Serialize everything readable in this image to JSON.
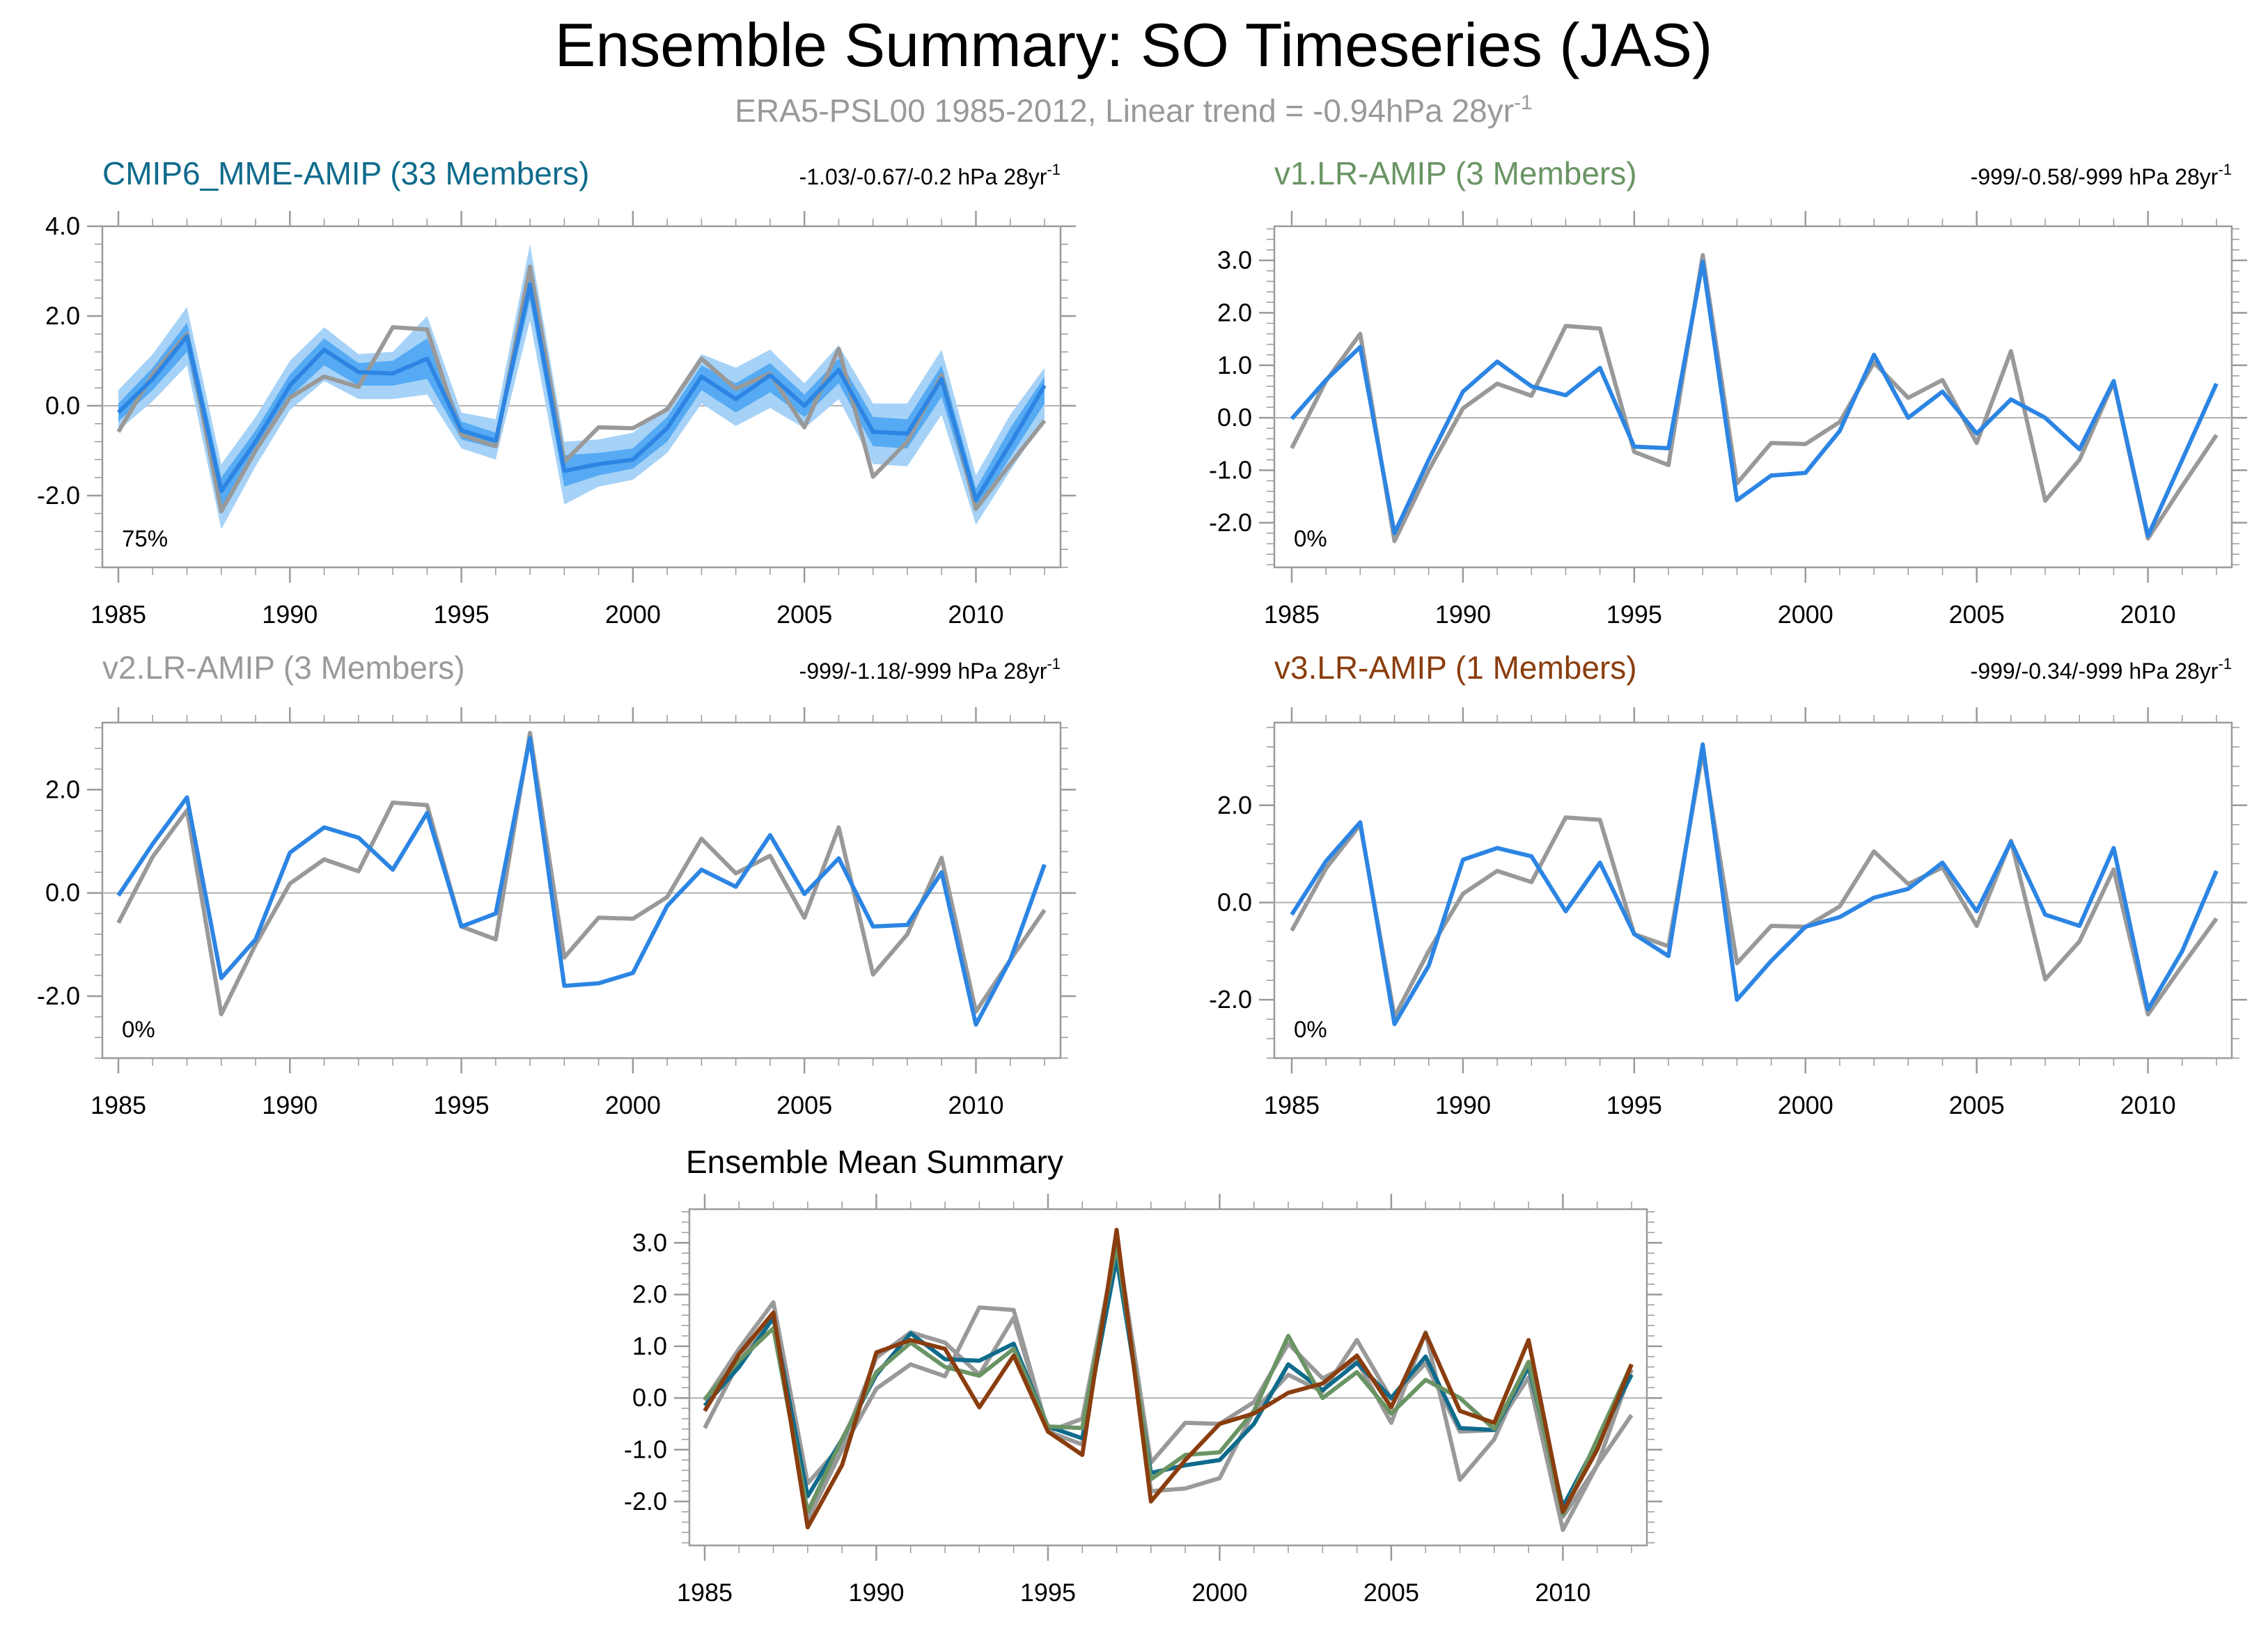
{
  "title": "Ensemble Summary: SO Timeseries (JAS)",
  "subtitle": {
    "text": "ERA5-PSL00 1985-2012, Linear trend = -0.94hPa 28yr",
    "sup": "-1"
  },
  "colors": {
    "obs": "#999999",
    "model": "#2c85e3",
    "band_outer": "#a6d2f7",
    "band_inner": "#55aaf3",
    "mme": "#0f6b8c",
    "v1": "#6a9464",
    "v2": "#9a9a9a",
    "v3": "#8a3d0e"
  },
  "chart_data": [
    {
      "type": "line",
      "name": "CMIP6_MME-AMIP",
      "title": "CMIP6_MME-AMIP (33 Members)",
      "trend_text": "-1.03/-0.67/-0.2 hPa 28yr",
      "trend_sup": "-1",
      "percent_label": "75%",
      "x": [
        1985,
        1986,
        1987,
        1988,
        1989,
        1990,
        1991,
        1992,
        1993,
        1994,
        1995,
        1996,
        1997,
        1998,
        1999,
        2000,
        2001,
        2002,
        2003,
        2004,
        2005,
        2006,
        2007,
        2008,
        2009,
        2010,
        2011,
        2012
      ],
      "xlim": [
        1985,
        2012
      ],
      "xticks": [
        "1985",
        "1990",
        "1995",
        "2000",
        "2005",
        "2010"
      ],
      "ylim": [
        -3.6,
        4.0
      ],
      "yticks": [
        -2.0,
        0.0,
        2.0,
        4.0
      ],
      "ytick_labels": [
        "-2.0",
        "0.0",
        "2.0",
        "4.0"
      ],
      "obs": [
        -0.58,
        0.7,
        1.6,
        -2.35,
        -1.0,
        0.18,
        0.65,
        0.42,
        1.75,
        1.7,
        -0.65,
        -0.9,
        3.1,
        -1.25,
        -0.48,
        -0.5,
        -0.08,
        1.05,
        0.38,
        0.72,
        -0.48,
        1.27,
        -1.58,
        -0.8,
        0.68,
        -2.3,
        -1.3,
        -0.33
      ],
      "model": [
        -0.15,
        0.6,
        1.55,
        -1.9,
        -0.8,
        0.45,
        1.25,
        0.75,
        0.72,
        1.05,
        -0.55,
        -0.78,
        2.7,
        -1.45,
        -1.3,
        -1.2,
        -0.5,
        0.65,
        0.15,
        0.68,
        0.0,
        0.8,
        -0.58,
        -0.62,
        0.6,
        -2.1,
        -0.85,
        0.45
      ],
      "band_outer_lo": [
        -0.55,
        0.1,
        0.9,
        -2.75,
        -1.35,
        -0.1,
        0.55,
        0.15,
        0.15,
        0.25,
        -0.95,
        -1.2,
        1.9,
        -2.2,
        -1.8,
        -1.65,
        -1.05,
        0.05,
        -0.45,
        -0.05,
        -0.5,
        0.15,
        -1.3,
        -1.35,
        -0.2,
        -2.65,
        -1.45,
        -0.3
      ],
      "band_outer_hi": [
        0.35,
        1.15,
        2.2,
        -1.3,
        -0.25,
        1.0,
        1.75,
        1.15,
        1.2,
        2.0,
        -0.15,
        -0.3,
        3.6,
        -0.8,
        -0.75,
        -0.6,
        0.0,
        1.15,
        0.85,
        1.25,
        0.5,
        1.35,
        0.05,
        0.05,
        1.25,
        -1.55,
        -0.2,
        0.85
      ],
      "band_inner_lo": [
        -0.35,
        0.35,
        1.2,
        -2.35,
        -1.05,
        0.2,
        0.9,
        0.45,
        0.45,
        0.6,
        -0.75,
        -0.95,
        2.35,
        -1.8,
        -1.55,
        -1.4,
        -0.8,
        0.35,
        -0.15,
        0.3,
        -0.25,
        0.5,
        -0.9,
        -0.95,
        0.2,
        -2.35,
        -1.15,
        0.05
      ],
      "band_inner_hi": [
        0.05,
        0.85,
        1.85,
        -1.6,
        -0.55,
        0.7,
        1.5,
        0.95,
        1.0,
        1.5,
        -0.35,
        -0.6,
        3.05,
        -1.1,
        -1.05,
        -0.95,
        -0.25,
        0.9,
        0.5,
        0.95,
        0.25,
        1.05,
        -0.25,
        -0.3,
        0.9,
        -1.85,
        -0.5,
        0.65
      ]
    },
    {
      "type": "line",
      "name": "v1.LR-AMIP",
      "title": "v1.LR-AMIP (3 Members)",
      "trend_text": "-999/-0.58/-999 hPa 28yr",
      "trend_sup": "-1",
      "percent_label": "0%",
      "x": [
        1985,
        1986,
        1987,
        1988,
        1989,
        1990,
        1991,
        1992,
        1993,
        1994,
        1995,
        1996,
        1997,
        1998,
        1999,
        2000,
        2001,
        2002,
        2003,
        2004,
        2005,
        2006,
        2007,
        2008,
        2009,
        2010,
        2011,
        2012
      ],
      "xlim": [
        1985,
        2012
      ],
      "xticks": [
        "1985",
        "1990",
        "1995",
        "2000",
        "2005",
        "2010"
      ],
      "ylim": [
        -2.85,
        3.65
      ],
      "yticks": [
        -2.0,
        -1.0,
        0.0,
        1.0,
        2.0,
        3.0
      ],
      "ytick_labels": [
        "-2.0",
        "-1.0",
        "0.0",
        "1.0",
        "2.0",
        "3.0"
      ],
      "obs": [
        -0.58,
        0.7,
        1.6,
        -2.35,
        -1.0,
        0.18,
        0.65,
        0.42,
        1.75,
        1.7,
        -0.65,
        -0.9,
        3.1,
        -1.25,
        -0.48,
        -0.5,
        -0.08,
        1.05,
        0.38,
        0.72,
        -0.48,
        1.27,
        -1.58,
        -0.8,
        0.68,
        -2.3,
        -1.3,
        -0.33
      ],
      "model": [
        -0.02,
        0.72,
        1.35,
        -2.2,
        -0.8,
        0.5,
        1.07,
        0.6,
        0.43,
        0.95,
        -0.55,
        -0.58,
        2.97,
        -1.57,
        -1.1,
        -1.05,
        -0.25,
        1.2,
        0.0,
        0.5,
        -0.3,
        0.35,
        0.0,
        -0.6,
        0.7,
        -2.25,
        -0.8,
        0.65
      ]
    },
    {
      "type": "line",
      "name": "v2.LR-AMIP",
      "title": "v2.LR-AMIP (3 Members)",
      "trend_text": "-999/-1.18/-999 hPa 28yr",
      "trend_sup": "-1",
      "percent_label": "0%",
      "x": [
        1985,
        1986,
        1987,
        1988,
        1989,
        1990,
        1991,
        1992,
        1993,
        1994,
        1995,
        1996,
        1997,
        1998,
        1999,
        2000,
        2001,
        2002,
        2003,
        2004,
        2005,
        2006,
        2007,
        2008,
        2009,
        2010,
        2011,
        2012
      ],
      "xlim": [
        1985,
        2012
      ],
      "xticks": [
        "1985",
        "1990",
        "1995",
        "2000",
        "2005",
        "2010"
      ],
      "ylim": [
        -3.2,
        3.3
      ],
      "yticks": [
        -2.0,
        0.0,
        2.0
      ],
      "ytick_labels": [
        "-2.0",
        "0.0",
        "2.0"
      ],
      "obs": [
        -0.58,
        0.7,
        1.6,
        -2.35,
        -1.0,
        0.18,
        0.65,
        0.42,
        1.75,
        1.7,
        -0.65,
        -0.9,
        3.1,
        -1.25,
        -0.48,
        -0.5,
        -0.08,
        1.05,
        0.38,
        0.72,
        -0.48,
        1.27,
        -1.58,
        -0.8,
        0.68,
        -2.3,
        -1.3,
        -0.33
      ],
      "model": [
        -0.05,
        0.95,
        1.85,
        -1.65,
        -0.9,
        0.78,
        1.27,
        1.07,
        0.45,
        1.55,
        -0.65,
        -0.4,
        3.0,
        -1.8,
        -1.75,
        -1.55,
        -0.25,
        0.45,
        0.12,
        1.12,
        -0.02,
        0.67,
        -0.65,
        -0.62,
        0.4,
        -2.55,
        -1.3,
        0.55
      ]
    },
    {
      "type": "line",
      "name": "v3.LR-AMIP",
      "title": "v3.LR-AMIP (1 Members)",
      "trend_text": "-999/-0.34/-999 hPa 28yr",
      "trend_sup": "-1",
      "percent_label": "0%",
      "x": [
        1985,
        1986,
        1987,
        1988,
        1989,
        1990,
        1991,
        1992,
        1993,
        1994,
        1995,
        1996,
        1997,
        1998,
        1999,
        2000,
        2001,
        2002,
        2003,
        2004,
        2005,
        2006,
        2007,
        2008,
        2009,
        2010,
        2011,
        2012
      ],
      "xlim": [
        1985,
        2012
      ],
      "xticks": [
        "1985",
        "1990",
        "1995",
        "2000",
        "2005",
        "2010"
      ],
      "ylim": [
        -3.2,
        3.7
      ],
      "yticks": [
        -2.0,
        0.0,
        2.0
      ],
      "ytick_labels": [
        "-2.0",
        "0.0",
        "2.0"
      ],
      "obs": [
        -0.58,
        0.7,
        1.6,
        -2.35,
        -1.0,
        0.18,
        0.65,
        0.42,
        1.75,
        1.7,
        -0.65,
        -0.9,
        3.1,
        -1.25,
        -0.48,
        -0.5,
        -0.08,
        1.05,
        0.38,
        0.72,
        -0.48,
        1.27,
        -1.58,
        -0.8,
        0.68,
        -2.3,
        -1.3,
        -0.33
      ],
      "model": [
        -0.25,
        0.85,
        1.65,
        -2.5,
        -1.3,
        0.88,
        1.12,
        0.95,
        -0.18,
        0.82,
        -0.65,
        -1.1,
        3.25,
        -2.0,
        -1.2,
        -0.5,
        -0.3,
        0.1,
        0.28,
        0.82,
        -0.18,
        1.25,
        -0.25,
        -0.48,
        1.12,
        -2.2,
        -1.0,
        0.65
      ]
    },
    {
      "type": "line",
      "name": "ensemble-mean",
      "title": "Ensemble Mean Summary",
      "x": [
        1985,
        1986,
        1987,
        1988,
        1989,
        1990,
        1991,
        1992,
        1993,
        1994,
        1995,
        1996,
        1997,
        1998,
        1999,
        2000,
        2001,
        2002,
        2003,
        2004,
        2005,
        2006,
        2007,
        2008,
        2009,
        2010,
        2011,
        2012
      ],
      "xlim": [
        1985,
        2012
      ],
      "xticks": [
        "1985",
        "1990",
        "1995",
        "2000",
        "2005",
        "2010"
      ],
      "ylim": [
        -2.85,
        3.65
      ],
      "yticks": [
        -2.0,
        -1.0,
        0.0,
        1.0,
        2.0,
        3.0
      ],
      "ytick_labels": [
        "-2.0",
        "-1.0",
        "0.0",
        "1.0",
        "2.0",
        "3.0"
      ],
      "series": [
        {
          "name": "ERA5-PSL00",
          "color_key": "obs",
          "values": [
            -0.58,
            0.7,
            1.6,
            -2.35,
            -1.0,
            0.18,
            0.65,
            0.42,
            1.75,
            1.7,
            -0.65,
            -0.9,
            3.1,
            -1.25,
            -0.48,
            -0.5,
            -0.08,
            1.05,
            0.38,
            0.72,
            -0.48,
            1.27,
            -1.58,
            -0.8,
            0.68,
            -2.3,
            -1.3,
            -0.33
          ]
        },
        {
          "name": "v2.LR-AMIP",
          "color_key": "v2",
          "values": [
            -0.05,
            0.95,
            1.85,
            -1.65,
            -0.9,
            0.78,
            1.27,
            1.07,
            0.45,
            1.55,
            -0.65,
            -0.4,
            3.0,
            -1.8,
            -1.75,
            -1.55,
            -0.25,
            0.45,
            0.12,
            1.12,
            -0.02,
            0.67,
            -0.65,
            -0.62,
            0.4,
            -2.55,
            -1.3,
            0.55
          ]
        },
        {
          "name": "CMIP6_MME-AMIP",
          "color_key": "mme",
          "values": [
            -0.15,
            0.6,
            1.55,
            -1.9,
            -0.8,
            0.45,
            1.25,
            0.75,
            0.72,
            1.05,
            -0.55,
            -0.78,
            2.7,
            -1.45,
            -1.3,
            -1.2,
            -0.5,
            0.65,
            0.15,
            0.68,
            0.0,
            0.8,
            -0.58,
            -0.62,
            0.6,
            -2.1,
            -0.85,
            0.45
          ]
        },
        {
          "name": "v1.LR-AMIP",
          "color_key": "v1",
          "values": [
            -0.02,
            0.72,
            1.35,
            -2.2,
            -0.8,
            0.5,
            1.07,
            0.6,
            0.43,
            0.95,
            -0.55,
            -0.58,
            2.97,
            -1.57,
            -1.1,
            -1.05,
            -0.25,
            1.2,
            0.0,
            0.5,
            -0.3,
            0.35,
            0.0,
            -0.6,
            0.7,
            -2.25,
            -0.8,
            0.65
          ]
        },
        {
          "name": "v3.LR-AMIP",
          "color_key": "v3",
          "values": [
            -0.25,
            0.85,
            1.65,
            -2.5,
            -1.3,
            0.88,
            1.12,
            0.95,
            -0.18,
            0.82,
            -0.65,
            -1.1,
            3.25,
            -2.0,
            -1.2,
            -0.5,
            -0.3,
            0.1,
            0.28,
            0.82,
            -0.18,
            1.25,
            -0.25,
            -0.48,
            1.12,
            -2.2,
            -1.0,
            0.65
          ]
        }
      ]
    }
  ]
}
